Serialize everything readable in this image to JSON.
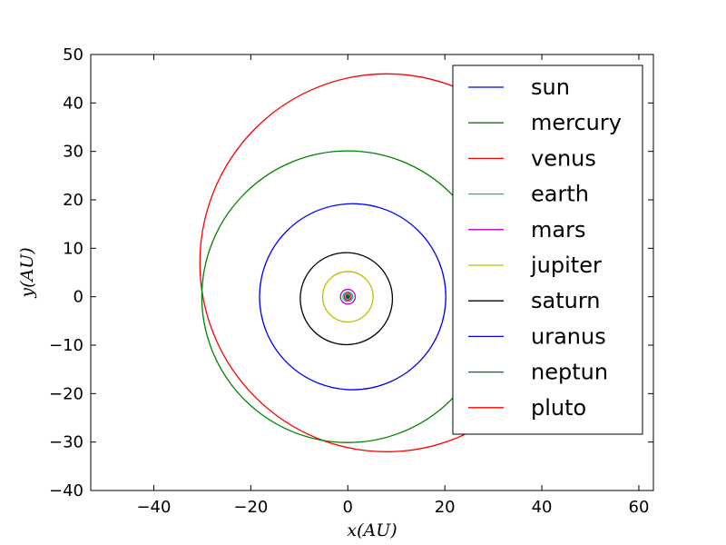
{
  "chart_data": {
    "type": "line",
    "title": "",
    "xlabel": "x(AU)",
    "ylabel": "y(AU)",
    "xlim": [
      -53,
      63
    ],
    "ylim": [
      -40,
      50
    ],
    "xticks": [
      -40,
      -20,
      0,
      20,
      40,
      60
    ],
    "yticks": [
      -40,
      -30,
      -20,
      -10,
      0,
      10,
      20,
      30,
      40,
      50
    ],
    "xtick_labels": [
      "−40",
      "−20",
      "0",
      "20",
      "40",
      "60"
    ],
    "ytick_labels": [
      "−40",
      "−30",
      "−20",
      "−10",
      "0",
      "10",
      "20",
      "30",
      "40",
      "50"
    ],
    "grid": false,
    "legend_position": "top-right",
    "series": [
      {
        "name": "sun",
        "color": "#0000ff",
        "orbit": {
          "cx": 0,
          "cy": 0,
          "rx": 0.05,
          "ry": 0.05
        }
      },
      {
        "name": "mercury",
        "color": "#008000",
        "orbit": {
          "cx": 0,
          "cy": 0,
          "rx": 0.39,
          "ry": 0.39
        }
      },
      {
        "name": "venus",
        "color": "#ff0000",
        "orbit": {
          "cx": 0,
          "cy": 0,
          "rx": 0.72,
          "ry": 0.72
        }
      },
      {
        "name": "earth",
        "color": "#00bfbf",
        "orbit": {
          "cx": 0,
          "cy": 0,
          "rx": 1.0,
          "ry": 1.0
        }
      },
      {
        "name": "mars",
        "color": "#bf00bf",
        "orbit": {
          "cx": 0,
          "cy": 0,
          "rx": 1.52,
          "ry": 1.52
        }
      },
      {
        "name": "jupiter",
        "color": "#bfbf00",
        "orbit": {
          "cx": 0,
          "cy": 0,
          "rx": 5.2,
          "ry": 5.2
        }
      },
      {
        "name": "saturn",
        "color": "#000000",
        "orbit": {
          "cx": -0.3,
          "cy": -0.4,
          "rx": 9.5,
          "ry": 9.5
        }
      },
      {
        "name": "uranus",
        "color": "#0000ff",
        "orbit": {
          "cx": 1.0,
          "cy": 0,
          "rx": 19.2,
          "ry": 19.2
        }
      },
      {
        "name": "neptun",
        "color": "#008000",
        "orbit": {
          "cx": 0,
          "cy": 0,
          "rx": 30.1,
          "ry": 30.1
        }
      },
      {
        "name": "pluto",
        "color": "#ff0000",
        "orbit": {
          "cx": 8.0,
          "cy": 7.0,
          "rx": 38.5,
          "ry": 39.0
        }
      }
    ]
  }
}
